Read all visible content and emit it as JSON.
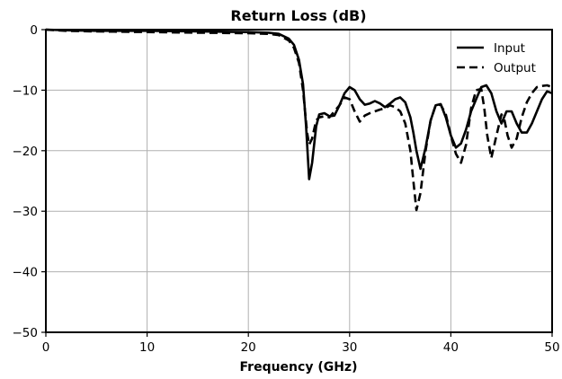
{
  "chart_data": {
    "type": "line",
    "title": "Return Loss (dB)",
    "xlabel": "Frequency (GHz)",
    "ylabel": "",
    "xlim": [
      0,
      50
    ],
    "ylim": [
      -50,
      0
    ],
    "xticks": [
      0,
      10,
      20,
      30,
      40,
      50
    ],
    "yticks": [
      0,
      -10,
      -20,
      -30,
      -40,
      -50
    ],
    "xtick_labels": [
      "0",
      "10",
      "20",
      "30",
      "40",
      "50"
    ],
    "ytick_labels": [
      "0",
      "−10",
      "−20",
      "−30",
      "−40",
      "−50"
    ],
    "grid": true,
    "legend_position": "top-right",
    "series": [
      {
        "name": "Input",
        "style": "solid",
        "color": "#000000",
        "x": [
          0,
          2,
          5,
          10,
          15,
          20,
          22,
          23,
          24,
          24.5,
          25,
          25.4,
          25.7,
          26,
          26.3,
          26.7,
          27,
          27.5,
          28,
          28.5,
          29,
          29.5,
          30,
          30.5,
          31,
          31.5,
          32,
          32.5,
          33,
          33.5,
          34,
          34.5,
          35,
          35.5,
          36,
          36.3,
          36.6,
          37,
          37.5,
          38,
          38.5,
          39,
          39.5,
          40,
          40.5,
          41,
          41.5,
          42,
          42.5,
          43,
          43.5,
          44,
          44.5,
          45,
          45.5,
          46,
          46.5,
          47,
          47.5,
          48,
          48.5,
          49,
          49.5,
          50
        ],
        "y": [
          0,
          -0.1,
          -0.2,
          -0.2,
          -0.3,
          -0.4,
          -0.5,
          -0.7,
          -1.5,
          -2.5,
          -5,
          -9,
          -16,
          -24.7,
          -22,
          -16,
          -14,
          -13.8,
          -14.3,
          -14.2,
          -12.5,
          -10.5,
          -9.5,
          -10,
          -11.5,
          -12.4,
          -12.2,
          -11.8,
          -12.2,
          -12.8,
          -12.2,
          -11.5,
          -11.2,
          -12,
          -14.5,
          -17,
          -20,
          -23,
          -19.5,
          -15,
          -12.5,
          -12.3,
          -14.5,
          -17.5,
          -19.5,
          -18.8,
          -16.5,
          -13.5,
          -11.5,
          -9.5,
          -9.2,
          -10.5,
          -13.5,
          -15.5,
          -13.5,
          -13.5,
          -15.5,
          -17,
          -17,
          -15.5,
          -13.5,
          -11.5,
          -10.2,
          -10.5
        ]
      },
      {
        "name": "Output",
        "style": "dashed",
        "color": "#000000",
        "x": [
          0,
          2,
          5,
          10,
          15,
          20,
          22,
          23,
          24,
          24.5,
          25,
          25.4,
          25.8,
          26,
          26.3,
          26.7,
          27,
          27.5,
          28,
          28.5,
          29,
          29.5,
          30,
          30.5,
          31,
          31.5,
          32,
          32.5,
          33,
          33.5,
          34,
          34.5,
          35,
          35.5,
          36,
          36.3,
          36.6,
          37,
          37.5,
          38,
          38.5,
          39,
          39.5,
          40,
          40.5,
          41,
          41.5,
          42,
          42.5,
          43,
          43.3,
          43.6,
          44,
          44.5,
          45,
          45.3,
          45.6,
          46,
          46.5,
          47,
          47.5,
          48,
          48.5,
          49,
          49.5,
          50
        ],
        "y": [
          0,
          -0.2,
          -0.3,
          -0.4,
          -0.5,
          -0.6,
          -0.7,
          -0.9,
          -1.8,
          -3,
          -5.5,
          -10,
          -17,
          -19,
          -18,
          -15,
          -14.5,
          -14.3,
          -14.5,
          -13.5,
          -12.5,
          -11.2,
          -11.5,
          -13.5,
          -15.2,
          -14.2,
          -13.8,
          -13.5,
          -13.2,
          -13,
          -12.5,
          -12.8,
          -13.5,
          -15.5,
          -20,
          -25,
          -29.8,
          -27,
          -20,
          -15,
          -12.5,
          -12.4,
          -14,
          -17.5,
          -20.5,
          -22,
          -19,
          -13,
          -10,
          -9.8,
          -13,
          -17.5,
          -21.2,
          -17.5,
          -14,
          -15,
          -17.5,
          -19.5,
          -18,
          -14.5,
          -12,
          -10.5,
          -9.5,
          -9.3,
          -9.2,
          -9.5
        ]
      }
    ]
  }
}
